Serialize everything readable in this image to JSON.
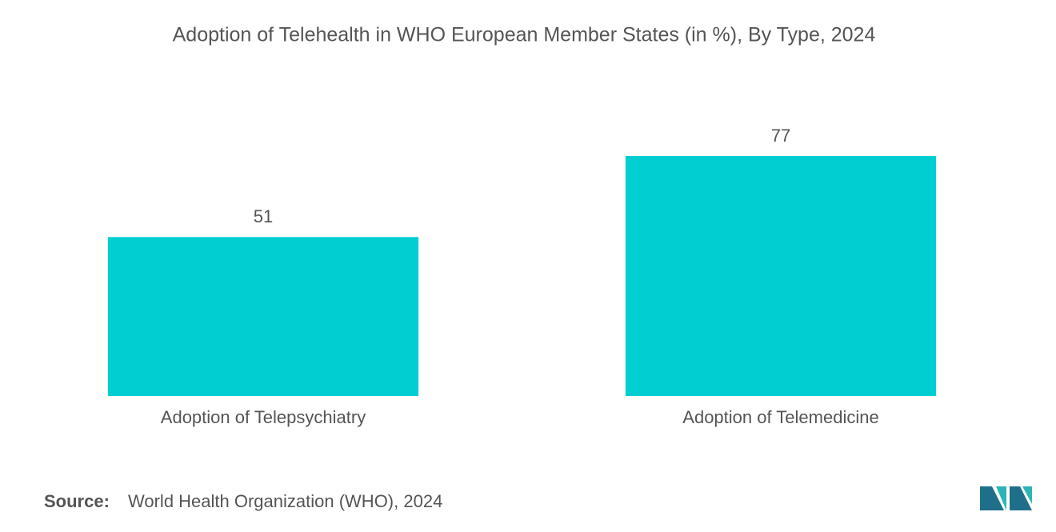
{
  "chart_data": {
    "type": "bar",
    "title": "Adoption of Telehealth in WHO European Member States (in %), By Type, 2024",
    "categories": [
      "Adoption of Telepsychiatry",
      "Adoption of Telemedicine"
    ],
    "values": [
      51,
      77
    ],
    "color": "#00ced1",
    "source_label": "Source:",
    "source": "World Health Organization (WHO), 2024"
  }
}
